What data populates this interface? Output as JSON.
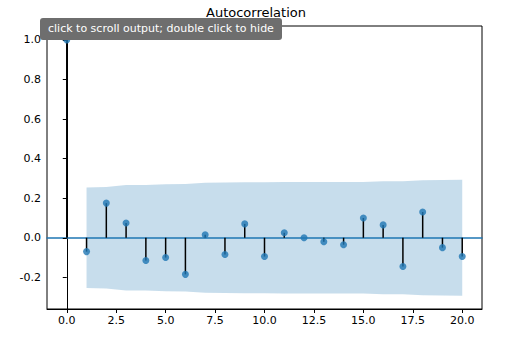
{
  "chart_data": {
    "type": "stem",
    "title": "Autocorrelation",
    "annotation": "click to scroll output; double click to hide",
    "x": [
      0,
      1,
      2,
      3,
      4,
      5,
      6,
      7,
      8,
      9,
      10,
      11,
      12,
      13,
      14,
      15,
      16,
      17,
      18,
      19,
      20
    ],
    "values": [
      1.0,
      -0.07,
      0.175,
      0.075,
      -0.115,
      -0.1,
      -0.185,
      0.015,
      -0.085,
      0.07,
      -0.095,
      0.025,
      0.0,
      -0.02,
      -0.035,
      0.1,
      0.065,
      -0.145,
      0.13,
      -0.05,
      -0.095
    ],
    "confint_x": [
      1,
      2,
      3,
      4,
      5,
      6,
      7,
      8,
      9,
      10,
      11,
      12,
      13,
      14,
      15,
      16,
      17,
      18,
      19,
      20
    ],
    "confint_upper": [
      0.254,
      0.256,
      0.266,
      0.267,
      0.27,
      0.272,
      0.278,
      0.279,
      0.28,
      0.281,
      0.282,
      0.282,
      0.282,
      0.282,
      0.282,
      0.285,
      0.286,
      0.29,
      0.292,
      0.293
    ],
    "confint_lower": [
      -0.254,
      -0.256,
      -0.266,
      -0.267,
      -0.27,
      -0.272,
      -0.278,
      -0.279,
      -0.28,
      -0.281,
      -0.282,
      -0.282,
      -0.282,
      -0.282,
      -0.282,
      -0.285,
      -0.286,
      -0.29,
      -0.292,
      -0.293
    ],
    "color": "#1f77b4",
    "marker": "circle",
    "xlim": [
      -1,
      21
    ],
    "xticks": [
      {
        "value": 0,
        "label": "0.0"
      },
      {
        "value": 2.5,
        "label": "2.5"
      },
      {
        "value": 5,
        "label": "5.0"
      },
      {
        "value": 7.5,
        "label": "7.5"
      },
      {
        "value": 10,
        "label": "10.0"
      },
      {
        "value": 12.5,
        "label": "12.5"
      },
      {
        "value": 15,
        "label": "15.0"
      },
      {
        "value": 17.5,
        "label": "17.5"
      },
      {
        "value": 20,
        "label": "20.0"
      }
    ],
    "ylim": [
      -0.36,
      1.07
    ],
    "yticks": [
      {
        "value": -0.2,
        "label": "-0.2"
      },
      {
        "value": 0,
        "label": "0.0"
      },
      {
        "value": 0.2,
        "label": "0.2"
      },
      {
        "value": 0.4,
        "label": "0.4"
      },
      {
        "value": 0.6,
        "label": "0.6"
      },
      {
        "value": 0.8,
        "label": "0.8"
      },
      {
        "value": 1.0,
        "label": "1.0"
      }
    ],
    "grid": false
  }
}
